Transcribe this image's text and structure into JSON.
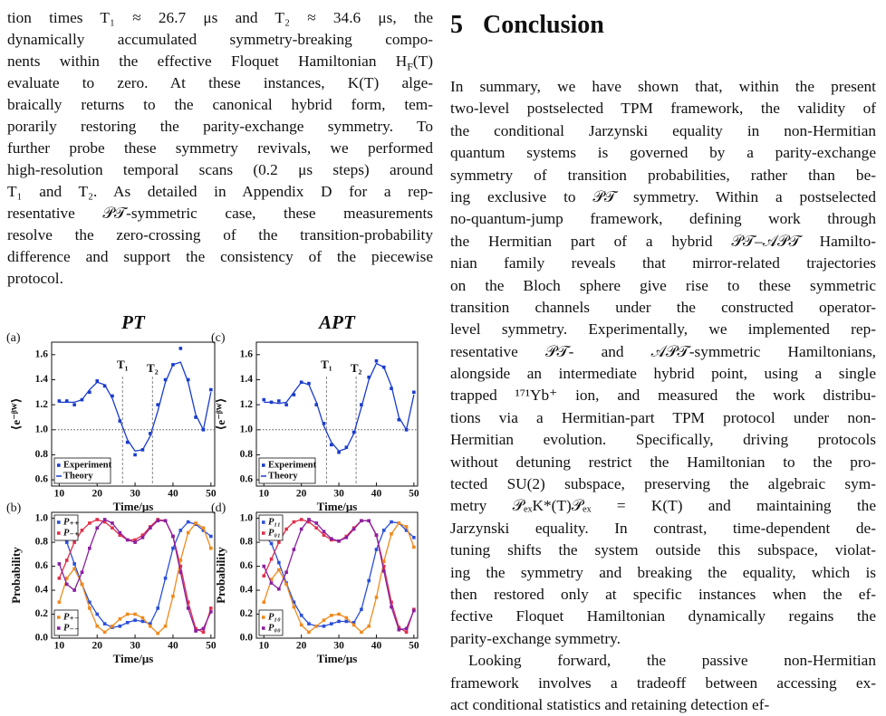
{
  "left_column": {
    "paragraphs": [
      [
        "tion times T₁ ≈ 26.7 μs and T₂ ≈ 34.6 μs, the",
        "dynamically accumulated symmetry-breaking compo-",
        [
          "nents within the effective Floquet Hamiltonian H",
          {
            "sub": "F"
          },
          "(T)"
        ],
        "evaluate to zero.  At these instances, K(T) alge-",
        "braically returns to the canonical hybrid form, tem-",
        "porarily restoring the parity-exchange symmetry. To",
        "further probe these symmetry revivals, we performed",
        "high-resolution temporal scans (0.2 μs steps) around",
        "T₁ and T₂.  As detailed in Appendix D for a rep-",
        "resentative 𝒫𝒯-symmetric case, these measurements",
        "resolve the zero-crossing of the transition-probability",
        "difference and support the consistency of the piecewise",
        "protocol."
      ]
    ]
  },
  "section": {
    "number": "5",
    "title": "Conclusion",
    "paragraphs": [
      [
        "In summary, we have shown that, within the present",
        "two-level postselected TPM framework, the validity of",
        "the conditional Jarzynski equality in non-Hermitian",
        "quantum systems is governed by a parity-exchange",
        "symmetry of transition probabilities, rather than be-",
        "ing exclusive to 𝒫𝒯 symmetry. Within a postselected",
        "no-quantum-jump framework, defining work through",
        "the Hermitian part of a hybrid 𝒫𝒯–𝒜𝒫𝒯 Hamilto-",
        "nian family reveals that mirror-related trajectories",
        "on the Bloch sphere give rise to these symmetric",
        "transition channels under the constructed operator-",
        "level symmetry. Experimentally, we implemented rep-",
        "resentative 𝒫𝒯- and 𝒜𝒫𝒯-symmetric Hamiltonians,",
        "alongside an intermediate hybrid point, using a single",
        "trapped ¹⁷¹Yb⁺ ion, and measured the work distribu-",
        "tions via a Hermitian-part TPM protocol under non-",
        "Hermitian evolution. Specifically, driving protocols",
        "without detuning restrict the Hamiltonian to the pro-",
        "tected SU(2) subspace, preserving the algebraic sym-",
        "metry 𝒫ₑₓK*(T)𝒫ₑₓ = K(T) and maintaining the",
        "Jarzynski equality. In contrast, time-dependent de-",
        "tuning shifts the system outside this subspace, violat-",
        "ing the symmetry and breaking the equality, which is",
        "then restored only at specific instances when the ef-",
        "fective Floquet Hamiltonian dynamically regains the",
        "parity-exchange symmetry."
      ],
      [
        "Looking forward, the passive non-Hermitian",
        "framework involves a tradeoff between accessing ex-",
        "act conditional statistics and retaining detection ef-"
      ]
    ]
  },
  "chart_data": [
    {
      "type": "line",
      "label": "(a)",
      "title": "PT",
      "xlabel": "Time/μs",
      "ylabel": "⟨e⁻ᵝᵂ⟩",
      "x": [
        10,
        12,
        14,
        16,
        18,
        20,
        22,
        24,
        26,
        28,
        30,
        32,
        34,
        36,
        38,
        40,
        42,
        44,
        46,
        48,
        50
      ],
      "series": [
        {
          "name": "Experiment",
          "color": "#1a3ccc",
          "mode": "markers",
          "legend": "lower left",
          "values": [
            1.23,
            1.23,
            1.2,
            1.24,
            1.3,
            1.39,
            1.35,
            1.27,
            1.07,
            0.9,
            0.8,
            0.84,
            0.97,
            1.2,
            1.4,
            1.52,
            1.65,
            1.4,
            1.1,
            1.0,
            1.32
          ]
        },
        {
          "name": "Theory",
          "color": "#1a3ccc",
          "mode": "line",
          "legend": "lower left",
          "values": [
            1.22,
            1.22,
            1.22,
            1.24,
            1.32,
            1.38,
            1.36,
            1.25,
            1.08,
            0.92,
            0.83,
            0.84,
            0.95,
            1.15,
            1.38,
            1.52,
            1.54,
            1.38,
            1.12,
            1.0,
            1.3
          ]
        }
      ],
      "xlim": [
        8,
        51
      ],
      "ylim": [
        0.55,
        1.7
      ],
      "xticks": [
        10,
        20,
        30,
        40,
        50
      ],
      "yticks": [
        0.6,
        0.8,
        {
          "value": 1,
          "label": "1.0"
        },
        1.2,
        1.4,
        1.6
      ],
      "reference_line": 1,
      "markers": [
        {
          "label": "T₁",
          "x": 26.7
        },
        {
          "label": "T₂",
          "x": 34.6
        }
      ]
    },
    {
      "type": "line",
      "label": "(b)",
      "xlabel": "Time/μs",
      "ylabel": "Probability",
      "x": [
        10,
        12,
        14,
        16,
        18,
        20,
        22,
        24,
        26,
        28,
        30,
        32,
        34,
        36,
        38,
        40,
        42,
        44,
        46,
        48,
        50
      ],
      "series": [
        {
          "name": "P₊₊",
          "color": "#2b4fd8",
          "mode": "line+markers",
          "legend": "upper left",
          "values": [
            0.88,
            0.8,
            0.62,
            0.45,
            0.3,
            0.2,
            0.12,
            0.09,
            0.1,
            0.13,
            0.15,
            0.14,
            0.12,
            0.25,
            0.5,
            0.75,
            0.9,
            0.97,
            0.95,
            0.9,
            0.85
          ]
        },
        {
          "name": "P₋₊",
          "color": "#e0304a",
          "mode": "line+markers",
          "legend": "upper left",
          "values": [
            0.5,
            0.65,
            0.8,
            0.9,
            0.96,
            0.99,
            0.97,
            0.92,
            0.86,
            0.82,
            0.82,
            0.86,
            0.93,
            0.99,
            0.98,
            0.85,
            0.6,
            0.3,
            0.08,
            0.05,
            0.25
          ]
        },
        {
          "name": "P₊₋",
          "color": "#f08a1c",
          "mode": "line+markers",
          "legend": "lower left",
          "values": [
            0.3,
            0.5,
            0.58,
            0.45,
            0.25,
            0.1,
            0.05,
            0.1,
            0.16,
            0.2,
            0.2,
            0.17,
            0.1,
            0.04,
            0.1,
            0.35,
            0.65,
            0.88,
            0.96,
            0.92,
            0.75
          ]
        },
        {
          "name": "P₋₋",
          "color": "#8a1fa0",
          "mode": "line+markers",
          "legend": "lower left",
          "values": [
            0.62,
            0.45,
            0.4,
            0.55,
            0.75,
            0.92,
            0.99,
            0.96,
            0.88,
            0.82,
            0.8,
            0.84,
            0.92,
            0.98,
            0.98,
            0.85,
            0.55,
            0.25,
            0.06,
            0.08,
            0.22
          ]
        }
      ],
      "xlim": [
        8,
        51
      ],
      "ylim": [
        0,
        1.05
      ],
      "xticks": [
        10,
        20,
        30,
        40,
        50
      ],
      "yticks": [
        {
          "value": 0,
          "label": "0.0"
        },
        0.2,
        0.4,
        0.6,
        0.8,
        {
          "value": 1,
          "label": "1.0"
        }
      ]
    },
    {
      "type": "line",
      "label": "(c)",
      "title": "APT",
      "xlabel": "Time/μs",
      "ylabel": "⟨e⁻ᵝᵂ⟩",
      "x": [
        10,
        12,
        14,
        16,
        18,
        20,
        22,
        24,
        26,
        28,
        30,
        32,
        34,
        36,
        38,
        40,
        42,
        44,
        46,
        48,
        50
      ],
      "series": [
        {
          "name": "Experiment",
          "color": "#1a3ccc",
          "mode": "markers",
          "legend": "lower left",
          "values": [
            1.24,
            1.22,
            1.23,
            1.2,
            1.28,
            1.38,
            1.37,
            1.2,
            1.05,
            0.88,
            0.82,
            0.86,
            0.98,
            1.2,
            1.42,
            1.55,
            1.5,
            1.33,
            1.08,
            1.0,
            1.3
          ]
        },
        {
          "name": "Theory",
          "color": "#1a3ccc",
          "mode": "line",
          "legend": "lower left",
          "values": [
            1.22,
            1.22,
            1.21,
            1.22,
            1.3,
            1.38,
            1.36,
            1.22,
            1.03,
            0.9,
            0.83,
            0.85,
            0.97,
            1.18,
            1.4,
            1.53,
            1.5,
            1.35,
            1.1,
            1.0,
            1.28
          ]
        }
      ],
      "xlim": [
        8,
        51
      ],
      "ylim": [
        0.55,
        1.7
      ],
      "xticks": [
        10,
        20,
        30,
        40,
        50
      ],
      "yticks": [
        0.6,
        0.8,
        {
          "value": 1,
          "label": "1.0"
        },
        1.2,
        1.4,
        1.6
      ],
      "reference_line": 1,
      "markers": [
        {
          "label": "T₁",
          "x": 26.7
        },
        {
          "label": "T₂",
          "x": 34.6
        }
      ]
    },
    {
      "type": "line",
      "label": "(d)",
      "xlabel": "Time/μs",
      "ylabel": "Probability",
      "x": [
        10,
        12,
        14,
        16,
        18,
        20,
        22,
        24,
        26,
        28,
        30,
        32,
        34,
        36,
        38,
        40,
        42,
        44,
        46,
        48,
        50
      ],
      "series": [
        {
          "name": "P₁₁",
          "color": "#2b4fd8",
          "mode": "line+markers",
          "legend": "upper left",
          "values": [
            0.87,
            0.79,
            0.63,
            0.46,
            0.3,
            0.19,
            0.12,
            0.1,
            0.1,
            0.12,
            0.14,
            0.14,
            0.13,
            0.24,
            0.48,
            0.74,
            0.9,
            0.97,
            0.96,
            0.9,
            0.84
          ]
        },
        {
          "name": "P₀₁",
          "color": "#e0304a",
          "mode": "line+markers",
          "legend": "upper left",
          "values": [
            0.52,
            0.66,
            0.8,
            0.91,
            0.97,
            0.99,
            0.97,
            0.92,
            0.86,
            0.82,
            0.81,
            0.85,
            0.92,
            0.98,
            0.98,
            0.86,
            0.6,
            0.3,
            0.09,
            0.05,
            0.24
          ]
        },
        {
          "name": "P₁₀",
          "color": "#f08a1c",
          "mode": "line+markers",
          "legend": "lower left",
          "values": [
            0.3,
            0.49,
            0.57,
            0.45,
            0.26,
            0.11,
            0.05,
            0.1,
            0.15,
            0.19,
            0.2,
            0.17,
            0.11,
            0.05,
            0.1,
            0.34,
            0.64,
            0.87,
            0.96,
            0.93,
            0.76
          ]
        },
        {
          "name": "P₀₀",
          "color": "#8a1fa0",
          "mode": "line+markers",
          "legend": "lower left",
          "values": [
            0.6,
            0.46,
            0.41,
            0.55,
            0.74,
            0.91,
            0.99,
            0.96,
            0.89,
            0.83,
            0.81,
            0.84,
            0.91,
            0.98,
            0.98,
            0.86,
            0.56,
            0.26,
            0.07,
            0.08,
            0.23
          ]
        }
      ],
      "xlim": [
        8,
        51
      ],
      "ylim": [
        0,
        1.05
      ],
      "xticks": [
        10,
        20,
        30,
        40,
        50
      ],
      "yticks": [
        {
          "value": 0,
          "label": "0.0"
        },
        0.2,
        0.4,
        0.6,
        0.8,
        {
          "value": 1,
          "label": "1.0"
        }
      ]
    }
  ]
}
